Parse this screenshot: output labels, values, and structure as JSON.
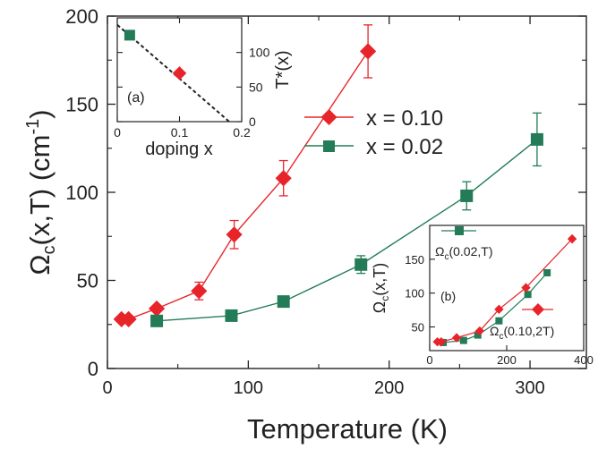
{
  "colors": {
    "red": "#e8242b",
    "green": "#237c57",
    "axis": "#222222",
    "fit": "#222222"
  },
  "chart_data": [
    {
      "id": "main",
      "type": "line",
      "xlabel": "Temperature (K)",
      "ylabel": "Ω_c(x,T) (cm^-1)",
      "xlim": [
        0,
        340
      ],
      "ylim": [
        0,
        200
      ],
      "xticks": [
        0,
        100,
        200,
        300
      ],
      "yticks": [
        0,
        50,
        100,
        150,
        200
      ],
      "legend_position": "top-right",
      "series": [
        {
          "name": "x = 0.10",
          "color": "#e8242b",
          "marker": "diamond",
          "x": [
            10,
            15,
            35,
            65,
            90,
            125,
            185
          ],
          "y": [
            28,
            28,
            34,
            44,
            76,
            108,
            180
          ],
          "yerr": [
            0,
            0,
            0,
            5,
            8,
            10,
            15
          ]
        },
        {
          "name": "x = 0.02",
          "color": "#237c57",
          "marker": "square",
          "x": [
            35,
            88,
            125,
            180,
            255,
            305
          ],
          "y": [
            27,
            30,
            38,
            59,
            98,
            130
          ],
          "yerr": [
            0,
            0,
            0,
            5,
            8,
            15
          ]
        }
      ]
    },
    {
      "id": "inset_a",
      "type": "scatter",
      "panel_label": "(a)",
      "xlabel": "doping x",
      "ylabel": "T*(x)",
      "xlim": [
        0,
        0.2
      ],
      "ylim": [
        0,
        150
      ],
      "xticks": [
        0,
        0.1,
        0.2
      ],
      "yticks": [
        0,
        50,
        100
      ],
      "points": [
        {
          "x": 0.02,
          "y": 125,
          "color": "#237c57",
          "marker": "square"
        },
        {
          "x": 0.1,
          "y": 70,
          "color": "#e8242b",
          "marker": "diamond"
        }
      ],
      "fit_line": {
        "x": [
          0,
          0.18
        ],
        "y": [
          140,
          0
        ]
      }
    },
    {
      "id": "inset_b",
      "type": "line",
      "panel_label": "(b)",
      "ylabel": "Ω_c(x,T)",
      "xlim": [
        0,
        400
      ],
      "ylim": [
        15,
        200
      ],
      "xticks": [
        0,
        200,
        400
      ],
      "yticks": [
        50,
        100,
        150
      ],
      "series": [
        {
          "name": "Ω_c(0.02,T)",
          "color": "#237c57",
          "marker": "square",
          "x": [
            35,
            88,
            125,
            180,
            255,
            305
          ],
          "y": [
            27,
            30,
            38,
            59,
            98,
            130
          ]
        },
        {
          "name": "Ω_c(0.10,2T)",
          "color": "#e8242b",
          "marker": "diamond",
          "x": [
            20,
            30,
            70,
            130,
            180,
            250,
            370
          ],
          "y": [
            28,
            28,
            34,
            44,
            76,
            108,
            180
          ]
        }
      ]
    }
  ]
}
